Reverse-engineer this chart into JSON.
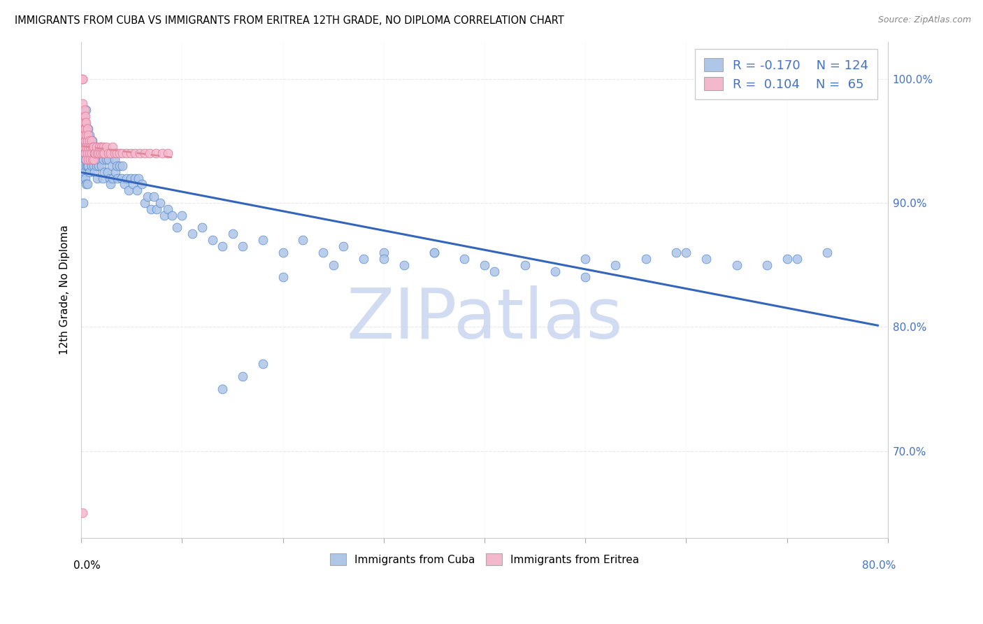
{
  "title": "IMMIGRANTS FROM CUBA VS IMMIGRANTS FROM ERITREA 12TH GRADE, NO DIPLOMA CORRELATION CHART",
  "source": "Source: ZipAtlas.com",
  "ylabel": "12th Grade, No Diploma",
  "xlim": [
    0.0,
    0.8
  ],
  "ylim": [
    0.63,
    1.03
  ],
  "cuba_color": "#aec6e8",
  "cuba_edge": "#5588cc",
  "eritrea_color": "#f4b8cc",
  "eritrea_edge": "#dd7799",
  "cuba_R": -0.17,
  "cuba_N": 124,
  "eritrea_R": 0.104,
  "eritrea_N": 65,
  "watermark": "ZIPatlas",
  "watermark_color": "#ccd8f0",
  "trendline_cuba_color": "#3366bb",
  "trendline_eritrea_color": "#dd8899",
  "background": "#ffffff",
  "grid_color": "#e8e8e8",
  "accent_blue": "#4472c4",
  "yticks": [
    0.7,
    0.8,
    0.9,
    1.0
  ],
  "ytick_labels": [
    "70.0%",
    "80.0%",
    "90.0%",
    "100.0%"
  ],
  "cuba_x": [
    0.001,
    0.001,
    0.002,
    0.002,
    0.002,
    0.003,
    0.003,
    0.003,
    0.003,
    0.004,
    0.004,
    0.004,
    0.004,
    0.005,
    0.005,
    0.005,
    0.005,
    0.005,
    0.006,
    0.006,
    0.006,
    0.006,
    0.007,
    0.007,
    0.007,
    0.008,
    0.008,
    0.008,
    0.009,
    0.009,
    0.01,
    0.01,
    0.011,
    0.011,
    0.012,
    0.012,
    0.013,
    0.013,
    0.014,
    0.015,
    0.015,
    0.016,
    0.016,
    0.017,
    0.018,
    0.019,
    0.02,
    0.021,
    0.022,
    0.023,
    0.024,
    0.025,
    0.026,
    0.027,
    0.028,
    0.029,
    0.03,
    0.031,
    0.033,
    0.034,
    0.035,
    0.036,
    0.038,
    0.04,
    0.041,
    0.043,
    0.045,
    0.047,
    0.049,
    0.051,
    0.053,
    0.055,
    0.057,
    0.06,
    0.063,
    0.066,
    0.069,
    0.072,
    0.075,
    0.078,
    0.082,
    0.086,
    0.09,
    0.095,
    0.1,
    0.11,
    0.12,
    0.13,
    0.14,
    0.15,
    0.16,
    0.18,
    0.2,
    0.22,
    0.24,
    0.26,
    0.28,
    0.3,
    0.32,
    0.35,
    0.38,
    0.41,
    0.44,
    0.47,
    0.5,
    0.53,
    0.56,
    0.59,
    0.62,
    0.65,
    0.68,
    0.71,
    0.74,
    0.7,
    0.6,
    0.5,
    0.4,
    0.35,
    0.3,
    0.25,
    0.2,
    0.18,
    0.16,
    0.14
  ],
  "cuba_y": [
    0.96,
    0.92,
    0.945,
    0.93,
    0.9,
    0.97,
    0.955,
    0.94,
    0.925,
    0.965,
    0.95,
    0.935,
    0.92,
    0.975,
    0.96,
    0.945,
    0.93,
    0.915,
    0.96,
    0.945,
    0.93,
    0.915,
    0.96,
    0.945,
    0.93,
    0.955,
    0.94,
    0.925,
    0.95,
    0.935,
    0.945,
    0.93,
    0.95,
    0.935,
    0.945,
    0.93,
    0.94,
    0.925,
    0.935,
    0.945,
    0.93,
    0.94,
    0.92,
    0.93,
    0.935,
    0.945,
    0.93,
    0.92,
    0.935,
    0.925,
    0.94,
    0.935,
    0.925,
    0.935,
    0.92,
    0.915,
    0.93,
    0.92,
    0.935,
    0.925,
    0.93,
    0.92,
    0.93,
    0.92,
    0.93,
    0.915,
    0.92,
    0.91,
    0.92,
    0.915,
    0.92,
    0.91,
    0.92,
    0.915,
    0.9,
    0.905,
    0.895,
    0.905,
    0.895,
    0.9,
    0.89,
    0.895,
    0.89,
    0.88,
    0.89,
    0.875,
    0.88,
    0.87,
    0.865,
    0.875,
    0.865,
    0.87,
    0.86,
    0.87,
    0.86,
    0.865,
    0.855,
    0.86,
    0.85,
    0.86,
    0.855,
    0.845,
    0.85,
    0.845,
    0.84,
    0.85,
    0.855,
    0.86,
    0.855,
    0.85,
    0.85,
    0.855,
    0.86,
    0.855,
    0.86,
    0.855,
    0.85,
    0.86,
    0.855,
    0.85,
    0.84,
    0.77,
    0.76,
    0.75
  ],
  "eritrea_x": [
    0.001,
    0.001,
    0.001,
    0.002,
    0.002,
    0.002,
    0.002,
    0.003,
    0.003,
    0.003,
    0.003,
    0.003,
    0.004,
    0.004,
    0.004,
    0.004,
    0.005,
    0.005,
    0.005,
    0.005,
    0.006,
    0.006,
    0.006,
    0.007,
    0.007,
    0.007,
    0.008,
    0.008,
    0.009,
    0.009,
    0.01,
    0.01,
    0.011,
    0.011,
    0.012,
    0.012,
    0.013,
    0.014,
    0.015,
    0.016,
    0.017,
    0.018,
    0.019,
    0.02,
    0.021,
    0.022,
    0.023,
    0.025,
    0.027,
    0.029,
    0.031,
    0.033,
    0.035,
    0.038,
    0.041,
    0.045,
    0.049,
    0.053,
    0.058,
    0.063,
    0.068,
    0.074,
    0.08,
    0.086,
    0.001
  ],
  "eritrea_y": [
    1.0,
    1.0,
    0.98,
    0.97,
    0.965,
    0.96,
    0.955,
    0.975,
    0.965,
    0.96,
    0.955,
    0.945,
    0.97,
    0.96,
    0.95,
    0.94,
    0.965,
    0.955,
    0.945,
    0.935,
    0.96,
    0.95,
    0.94,
    0.955,
    0.945,
    0.935,
    0.95,
    0.94,
    0.945,
    0.935,
    0.95,
    0.94,
    0.945,
    0.935,
    0.945,
    0.935,
    0.94,
    0.94,
    0.945,
    0.94,
    0.94,
    0.945,
    0.94,
    0.945,
    0.94,
    0.945,
    0.94,
    0.945,
    0.94,
    0.94,
    0.945,
    0.94,
    0.94,
    0.94,
    0.94,
    0.94,
    0.94,
    0.94,
    0.94,
    0.94,
    0.94,
    0.94,
    0.94,
    0.94,
    0.65
  ]
}
